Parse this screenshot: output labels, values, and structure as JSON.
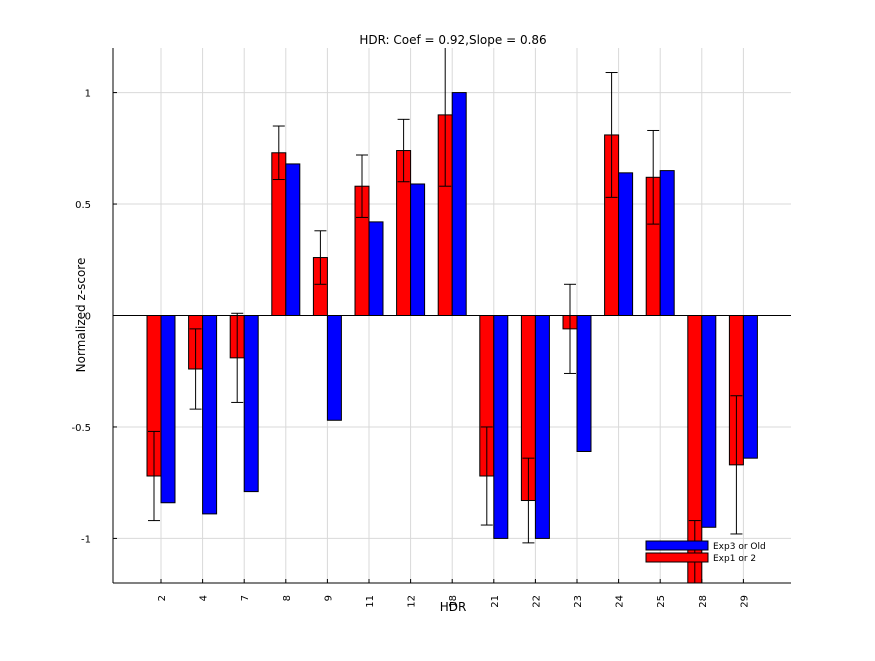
{
  "chart_data": {
    "type": "bar",
    "title": "HDR: Coef = 0.92,Slope = 0.86",
    "xlabel": "HDR",
    "ylabel": "Normalized z-score",
    "categories": [
      "2",
      "4",
      "7",
      "8",
      "9",
      "11",
      "12",
      "18",
      "21",
      "22",
      "23",
      "24",
      "25",
      "28",
      "29"
    ],
    "series": [
      {
        "name": "Exp1 or 2",
        "color": "#ff0000",
        "values": [
          -0.72,
          -0.24,
          -0.19,
          0.73,
          0.26,
          0.58,
          0.74,
          0.9,
          -0.72,
          -0.83,
          -0.06,
          0.81,
          0.62,
          -1.3,
          -0.67
        ],
        "errors": [
          0.2,
          0.18,
          0.2,
          0.12,
          0.12,
          0.14,
          0.14,
          0.32,
          0.22,
          0.19,
          0.2,
          0.28,
          0.21,
          0.38,
          0.31
        ]
      },
      {
        "name": "Exp3 or Old",
        "color": "#0000ff",
        "values": [
          -0.84,
          -0.89,
          -0.79,
          0.68,
          -0.47,
          0.42,
          0.59,
          1.0,
          -1.0,
          -1.0,
          -0.61,
          0.64,
          0.65,
          -0.95,
          -0.64
        ]
      }
    ],
    "yticks": [
      "-1",
      "-0.5",
      "0",
      "0.5",
      "1"
    ],
    "ylim": [
      -1.2,
      1.2
    ],
    "grid": true,
    "legend_position": "bottom-right"
  }
}
